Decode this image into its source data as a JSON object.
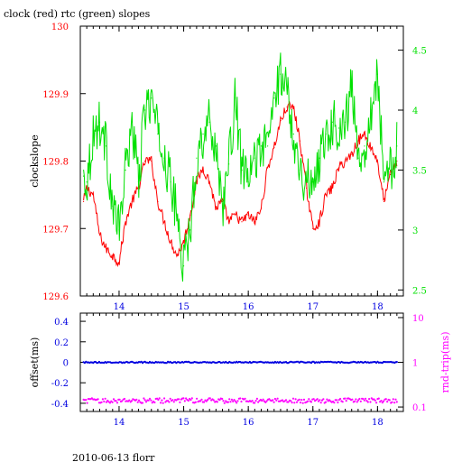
{
  "figure": {
    "title": "clock (red) rtc (green) slopes",
    "footer": "2010-06-13 florr"
  },
  "colors": {
    "clock": "#ff0000",
    "rtc": "#00e000",
    "offset": "#0000e0",
    "rndtrip": "#ff00ff",
    "axis": "#000000"
  },
  "chart_data": [
    {
      "type": "line",
      "name": "top",
      "xlabel": "",
      "ylabel": "clockslope",
      "y2label": "",
      "xlim": [
        13.4,
        18.4
      ],
      "ylim": [
        129.6,
        130.0
      ],
      "y2lim": [
        2.45,
        4.7
      ],
      "xticks": [
        14,
        15,
        16,
        17,
        18
      ],
      "yticks": [
        129.6,
        129.7,
        129.8,
        129.9,
        130
      ],
      "ytick_labels": [
        "129.6",
        "129.7",
        "129.8",
        "129.9",
        "130"
      ],
      "y2ticks": [
        2.5,
        3,
        3.5,
        4,
        4.5
      ],
      "y2tick_labels": [
        "2.5",
        "3",
        "3.5",
        "4",
        "4.5"
      ],
      "series": [
        {
          "axis": "left",
          "x": [
            13.45,
            13.5,
            13.6,
            13.7,
            13.8,
            13.9,
            14.0,
            14.1,
            14.2,
            14.3,
            14.4,
            14.5,
            14.6,
            14.7,
            14.8,
            14.9,
            15.0,
            15.1,
            15.2,
            15.3,
            15.4,
            15.5,
            15.6,
            15.7,
            15.8,
            15.9,
            16.0,
            16.1,
            16.2,
            16.3,
            16.4,
            16.5,
            16.6,
            16.7,
            16.8,
            16.9,
            17.0,
            17.1,
            17.2,
            17.3,
            17.4,
            17.5,
            17.6,
            17.7,
            17.8,
            17.9,
            18.0,
            18.1,
            18.2,
            18.3
          ],
          "y": [
            129.74,
            129.76,
            129.75,
            129.69,
            129.67,
            129.66,
            129.65,
            129.71,
            129.74,
            129.76,
            129.8,
            129.8,
            129.74,
            129.71,
            129.68,
            129.66,
            129.68,
            129.72,
            129.77,
            129.79,
            129.77,
            129.73,
            129.74,
            129.71,
            129.72,
            129.71,
            129.72,
            129.71,
            129.73,
            129.79,
            129.82,
            129.86,
            129.88,
            129.88,
            129.83,
            129.76,
            129.7,
            129.71,
            129.75,
            129.76,
            129.79,
            129.8,
            129.81,
            129.83,
            129.84,
            129.82,
            129.8,
            129.74,
            129.78,
            129.8
          ]
        },
        {
          "axis": "right",
          "x": [
            13.45,
            13.5,
            13.6,
            13.7,
            13.8,
            13.9,
            14.0,
            14.1,
            14.2,
            14.3,
            14.4,
            14.5,
            14.6,
            14.7,
            14.8,
            14.9,
            15.0,
            15.1,
            15.2,
            15.3,
            15.4,
            15.5,
            15.6,
            15.7,
            15.8,
            15.9,
            16.0,
            16.1,
            16.2,
            16.3,
            16.4,
            16.5,
            16.6,
            16.7,
            16.8,
            16.9,
            17.0,
            17.1,
            17.2,
            17.3,
            17.4,
            17.5,
            17.6,
            17.7,
            17.8,
            17.9,
            18.0,
            18.1,
            18.2,
            18.3
          ],
          "y": [
            3.45,
            3.4,
            3.8,
            3.9,
            3.7,
            3.2,
            3.0,
            3.5,
            3.9,
            3.4,
            4.0,
            4.1,
            3.8,
            3.6,
            3.4,
            3.1,
            2.7,
            3.0,
            3.6,
            3.8,
            3.9,
            3.7,
            3.2,
            3.55,
            4.1,
            3.5,
            3.4,
            3.6,
            3.7,
            3.7,
            4.1,
            4.3,
            4.2,
            3.8,
            3.5,
            3.4,
            3.4,
            3.6,
            3.8,
            3.9,
            3.85,
            3.9,
            4.2,
            3.6,
            3.7,
            4.0,
            4.3,
            3.4,
            3.5,
            3.7
          ]
        }
      ]
    },
    {
      "type": "scatter",
      "name": "bottom",
      "xlabel": "",
      "ylabel": "offset(ms)",
      "y2label": "rnd-trip(ms)",
      "xlim": [
        13.4,
        18.4
      ],
      "ylim": [
        -0.48,
        0.48
      ],
      "y2lim": [
        0.0795,
        12.6
      ],
      "y2scale": "log",
      "xticks": [
        14,
        15,
        16,
        17,
        18
      ],
      "yticks": [
        -0.4,
        -0.2,
        0,
        0.2,
        0.4
      ],
      "ytick_labels": [
        "-0.4",
        "-0.2",
        "0",
        "0.2",
        "0.4"
      ],
      "y2ticks": [
        0.1,
        1,
        10
      ],
      "y2tick_labels": [
        "0.1",
        "1",
        "10"
      ],
      "series": [
        {
          "axis": "left",
          "x": [
            13.45,
            18.3
          ],
          "y": [
            0,
            0
          ]
        },
        {
          "axis": "right",
          "x": [
            13.45,
            18.3
          ],
          "y": [
            0.14,
            0.14
          ]
        }
      ]
    }
  ]
}
